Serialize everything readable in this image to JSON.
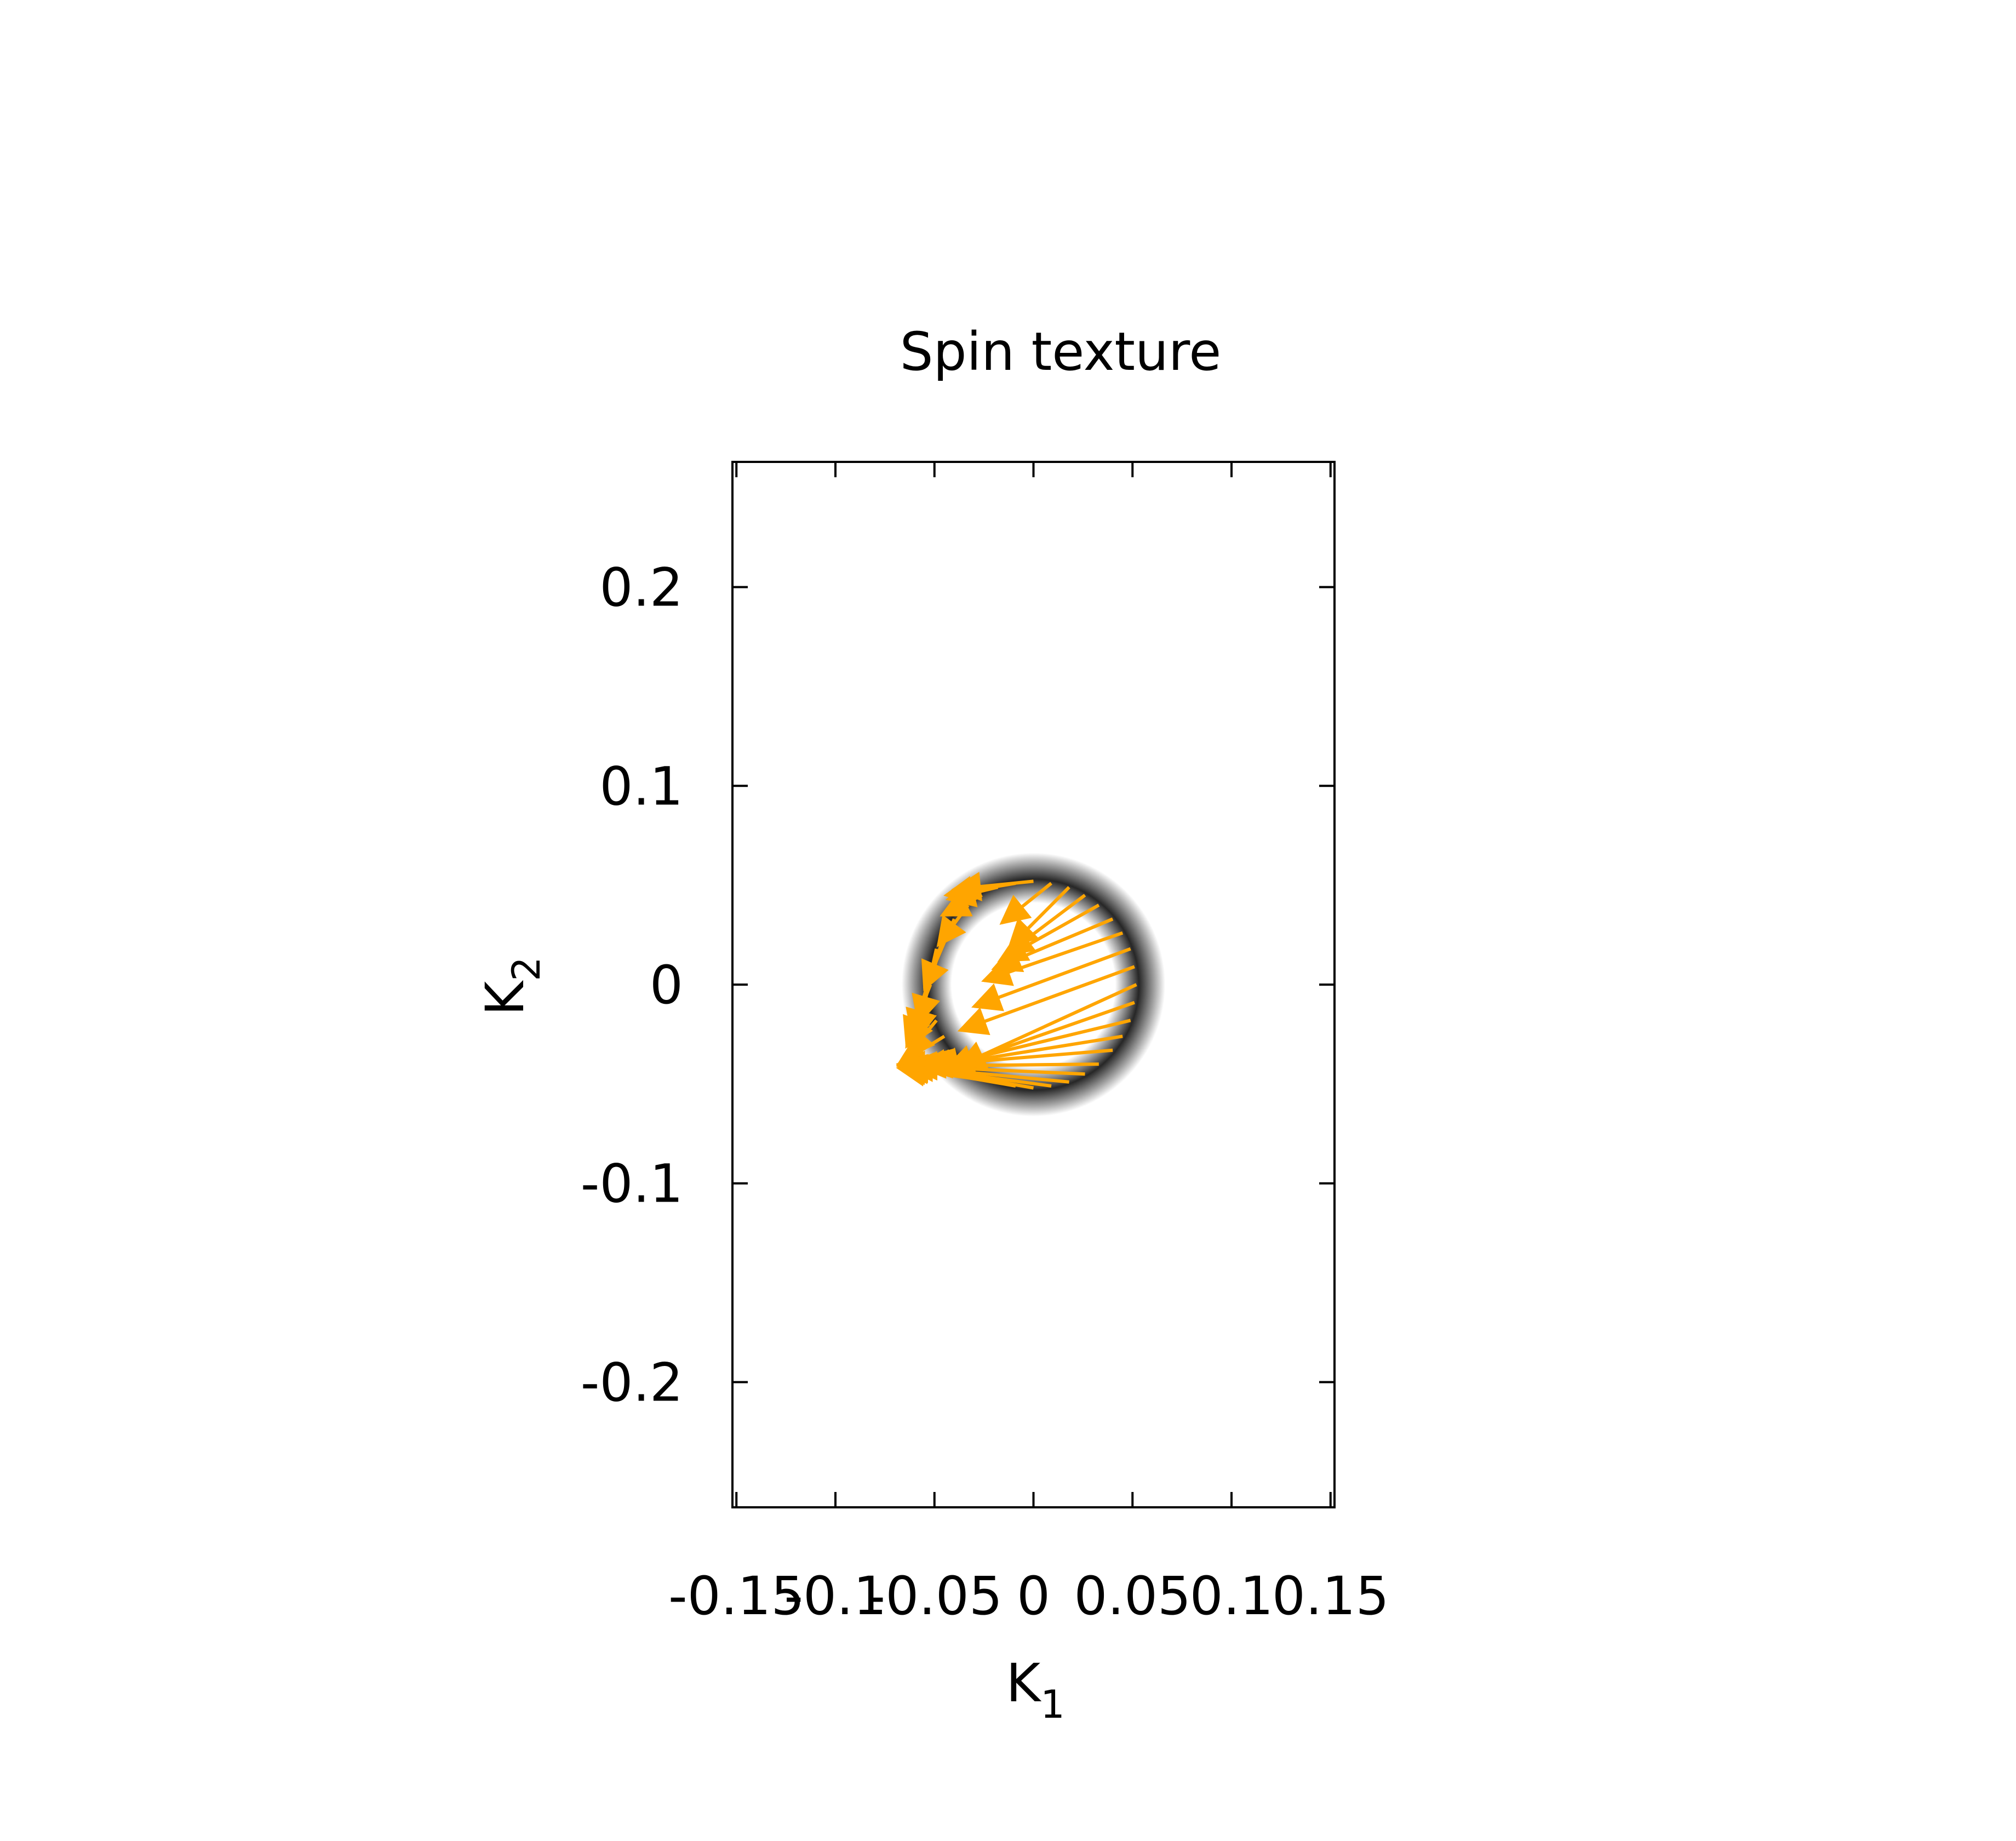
{
  "chart_data": {
    "type": "scatter",
    "title": "Spin texture",
    "xlabel": "K",
    "xlabel_subscript": "1",
    "ylabel": "K",
    "ylabel_subscript": "2",
    "xlim": [
      -0.152,
      0.152
    ],
    "ylim": [
      -0.263,
      0.263
    ],
    "xticks": [
      {
        "value": -0.15,
        "label": "-0.15"
      },
      {
        "value": -0.1,
        "label": "-0.1"
      },
      {
        "value": -0.05,
        "label": "-0.05"
      },
      {
        "value": 0,
        "label": "0"
      },
      {
        "value": 0.05,
        "label": "0.05"
      },
      {
        "value": 0.1,
        "label": "0.1"
      },
      {
        "value": 0.15,
        "label": "0.15"
      }
    ],
    "yticks": [
      {
        "value": 0.2,
        "label": "0.2"
      },
      {
        "value": 0.1,
        "label": "0.1"
      },
      {
        "value": 0,
        "label": "0"
      },
      {
        "value": -0.1,
        "label": "-0.1"
      },
      {
        "value": -0.2,
        "label": "-0.2"
      }
    ],
    "grid": false,
    "legend": "none",
    "colors": {
      "arrows": "#ffa500",
      "contour": "#000000",
      "frame": "#000000"
    },
    "series": [
      {
        "kind": "contour-ring",
        "center": [
          0,
          0
        ],
        "radius": 0.052
      },
      {
        "kind": "spin-arrows",
        "points": [
          {
            "x": 0.052,
            "y": 0.0,
            "u": -0.09,
            "v": -0.041
          },
          {
            "x": 0.051,
            "y": 0.009,
            "u": -0.088,
            "v": -0.032
          },
          {
            "x": 0.049,
            "y": 0.018,
            "u": -0.079,
            "v": -0.029
          },
          {
            "x": 0.045,
            "y": 0.026,
            "u": -0.07,
            "v": -0.024
          },
          {
            "x": 0.04,
            "y": 0.033,
            "u": -0.06,
            "v": -0.025
          },
          {
            "x": 0.033,
            "y": 0.04,
            "u": -0.05,
            "v": -0.028
          },
          {
            "x": 0.026,
            "y": 0.045,
            "u": -0.04,
            "v": -0.03
          },
          {
            "x": 0.018,
            "y": 0.049,
            "u": -0.03,
            "v": -0.03
          },
          {
            "x": 0.009,
            "y": 0.051,
            "u": -0.025,
            "v": -0.02
          },
          {
            "x": 0.0,
            "y": 0.052,
            "u": -0.04,
            "v": -0.004
          },
          {
            "x": -0.009,
            "y": 0.051,
            "u": -0.035,
            "v": -0.006
          },
          {
            "x": -0.018,
            "y": 0.049,
            "u": -0.025,
            "v": -0.006
          },
          {
            "x": -0.026,
            "y": 0.045,
            "u": -0.02,
            "v": -0.01
          },
          {
            "x": -0.033,
            "y": 0.04,
            "u": -0.015,
            "v": -0.02
          },
          {
            "x": -0.04,
            "y": 0.033,
            "u": -0.015,
            "v": -0.035
          },
          {
            "x": -0.045,
            "y": 0.026,
            "u": -0.013,
            "v": -0.045
          },
          {
            "x": -0.049,
            "y": 0.018,
            "u": -0.01,
            "v": -0.045
          },
          {
            "x": -0.051,
            "y": 0.009,
            "u": -0.01,
            "v": -0.035
          },
          {
            "x": -0.052,
            "y": 0.0,
            "u": -0.012,
            "v": -0.03
          },
          {
            "x": -0.051,
            "y": -0.009,
            "u": -0.013,
            "v": -0.022
          },
          {
            "x": -0.049,
            "y": -0.018,
            "u": -0.015,
            "v": -0.018
          },
          {
            "x": -0.045,
            "y": -0.026,
            "u": -0.023,
            "v": -0.014
          },
          {
            "x": -0.04,
            "y": -0.033,
            "u": -0.028,
            "v": -0.007
          },
          {
            "x": -0.033,
            "y": -0.04,
            "u": -0.035,
            "v": -0.001
          },
          {
            "x": -0.026,
            "y": -0.045,
            "u": -0.041,
            "v": 0.004
          },
          {
            "x": -0.018,
            "y": -0.049,
            "u": -0.05,
            "v": 0.007
          },
          {
            "x": -0.009,
            "y": -0.051,
            "u": -0.058,
            "v": 0.01
          },
          {
            "x": 0.0,
            "y": -0.052,
            "u": -0.068,
            "v": 0.012
          },
          {
            "x": 0.009,
            "y": -0.051,
            "u": -0.075,
            "v": 0.01
          },
          {
            "x": 0.018,
            "y": -0.049,
            "u": -0.084,
            "v": 0.008
          },
          {
            "x": 0.026,
            "y": -0.045,
            "u": -0.09,
            "v": 0.004
          },
          {
            "x": 0.033,
            "y": -0.04,
            "u": -0.095,
            "v": -0.001
          },
          {
            "x": 0.04,
            "y": -0.033,
            "u": -0.098,
            "v": -0.008
          },
          {
            "x": 0.045,
            "y": -0.026,
            "u": -0.1,
            "v": -0.016
          },
          {
            "x": 0.049,
            "y": -0.018,
            "u": -0.1,
            "v": -0.024
          },
          {
            "x": 0.051,
            "y": -0.009,
            "u": -0.095,
            "v": -0.033
          }
        ]
      }
    ]
  }
}
